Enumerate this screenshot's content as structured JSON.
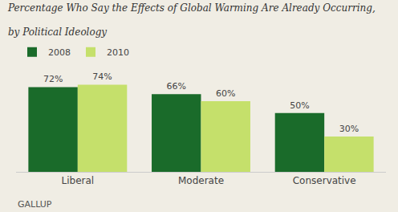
{
  "chart_data": {
    "type": "bar",
    "title": "Percentage Who Say the Effects of Global Warming Are Already Occurring,",
    "subtitle": "by Political Ideology",
    "annotations": [
      "GALLUP"
    ],
    "categories": [
      "Liberal",
      "Moderate",
      "Conservative"
    ],
    "series": [
      {
        "name": "2008",
        "color": "#1a6b2a",
        "values": [
          72,
          66,
          50
        ],
        "value_labels": [
          "72%",
          "66%",
          "50%"
        ]
      },
      {
        "name": "2010",
        "color": "#c5e06b",
        "values": [
          74,
          60,
          30
        ],
        "value_labels": [
          "74%",
          "60%",
          "30%"
        ]
      }
    ],
    "ylim": [
      0,
      90
    ],
    "data_labels": true,
    "tick_labels": "x",
    "grid": false,
    "legend": "upper left"
  }
}
